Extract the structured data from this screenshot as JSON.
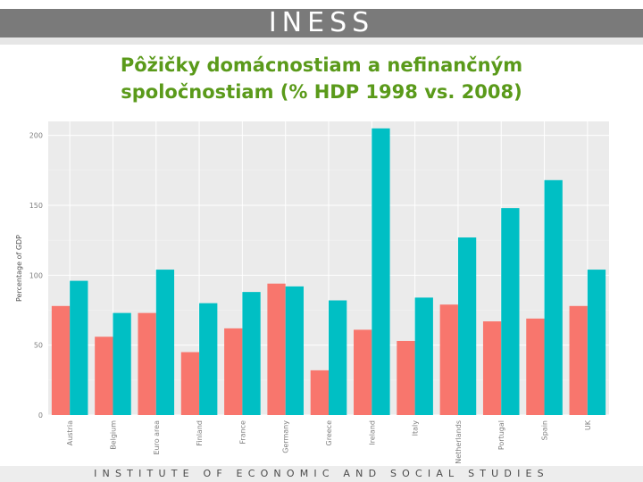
{
  "header": {
    "logo_text": "INESS",
    "title_line1": "Pôžičky domácnostiam a nefinančným",
    "title_line2": "spoločnostiam (% HDP  1998 vs. 2008)"
  },
  "footer": {
    "text": "INSTITUTE OF ECONOMIC AND SOCIAL STUDIES"
  },
  "chart_data": {
    "type": "bar",
    "title": "",
    "xlabel": "",
    "ylabel": "Percentage of GDP",
    "ylim": [
      0,
      210
    ],
    "yticks": [
      0,
      50,
      100,
      150,
      200
    ],
    "grid": true,
    "legend": "none",
    "categories": [
      "Austria",
      "Belgium",
      "Euro area",
      "Finland",
      "France",
      "Germany",
      "Greece",
      "Ireland",
      "Italy",
      "Netherlands",
      "Portugal",
      "Spain",
      "UK"
    ],
    "series": [
      {
        "values": [
          78,
          56,
          73,
          45,
          62,
          94,
          32,
          61,
          53,
          79,
          67,
          69,
          78
        ],
        "color": "#f8766d"
      },
      {
        "values": [
          96,
          73,
          104,
          80,
          88,
          92,
          82,
          205,
          84,
          127,
          148,
          168,
          104
        ],
        "color": "#00bfc4"
      }
    ],
    "panel_color": "#ebebeb",
    "grid_color": "#ffffff"
  }
}
